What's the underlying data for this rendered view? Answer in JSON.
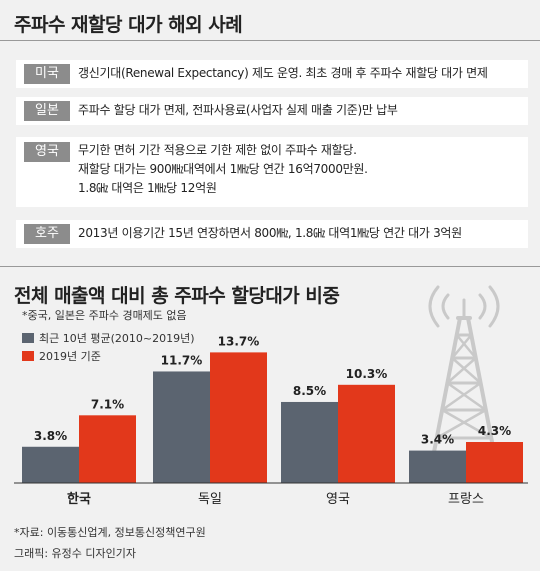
{
  "heading1": "주파수 재할당 대가 해외 사례",
  "cases": [
    {
      "country": "미국",
      "lines": [
        "갱신기대(Renewal Expectancy) 제도 운영. 최초 경매 후 주파수 재할당 대가 면제"
      ]
    },
    {
      "country": "일본",
      "lines": [
        "주파수 할당 대가 면제, 전파사용료(사업자 실제 매출 기준)만 납부"
      ]
    },
    {
      "country": "영국",
      "lines": [
        "무기한 면허 기간 적용으로 기한 제한 없이 주파수 재할당.",
        "재할당 대가는 900㎒대역에서 1㎒당 연간 16억7000만원.",
        "1.8㎓ 대역은 1㎒당 12억원"
      ]
    },
    {
      "country": "호주",
      "lines": [
        "2013년 이용기간 15년 연장하면서 800㎒, 1.8㎓ 대역1㎒당 연간 대가 3억원"
      ]
    }
  ],
  "heading2": "전체 매출액 대비 총 주파수 할당대가 비중",
  "note": "*중국, 일본은 주파수 경매제도 없음",
  "colors": {
    "avg": "#5b6470",
    "y2019": "#e2381b",
    "tower": "#c9c9c9"
  },
  "chart_data": {
    "type": "bar",
    "title": "전체 매출액 대비 총 주파수 할당대가 비중",
    "categories": [
      "한국",
      "독일",
      "영국",
      "프랑스"
    ],
    "series": [
      {
        "name": "최근 10년 평균(2010~2019년)",
        "values": [
          3.8,
          11.7,
          8.5,
          3.4
        ],
        "labels": [
          "3.8%",
          "11.7%",
          "8.5%",
          "3.4%"
        ]
      },
      {
        "name": "2019년 기준",
        "values": [
          7.1,
          13.7,
          10.3,
          4.3
        ],
        "labels": [
          "7.1%",
          "13.7%",
          "10.3%",
          "4.3%"
        ]
      }
    ],
    "ylim": [
      0,
      15
    ],
    "legend": "top-left",
    "grid": false
  },
  "source": "*자료: 이동통신업계, 정보통신정책연구원",
  "credit": "그래픽: 유정수 디자인기자"
}
